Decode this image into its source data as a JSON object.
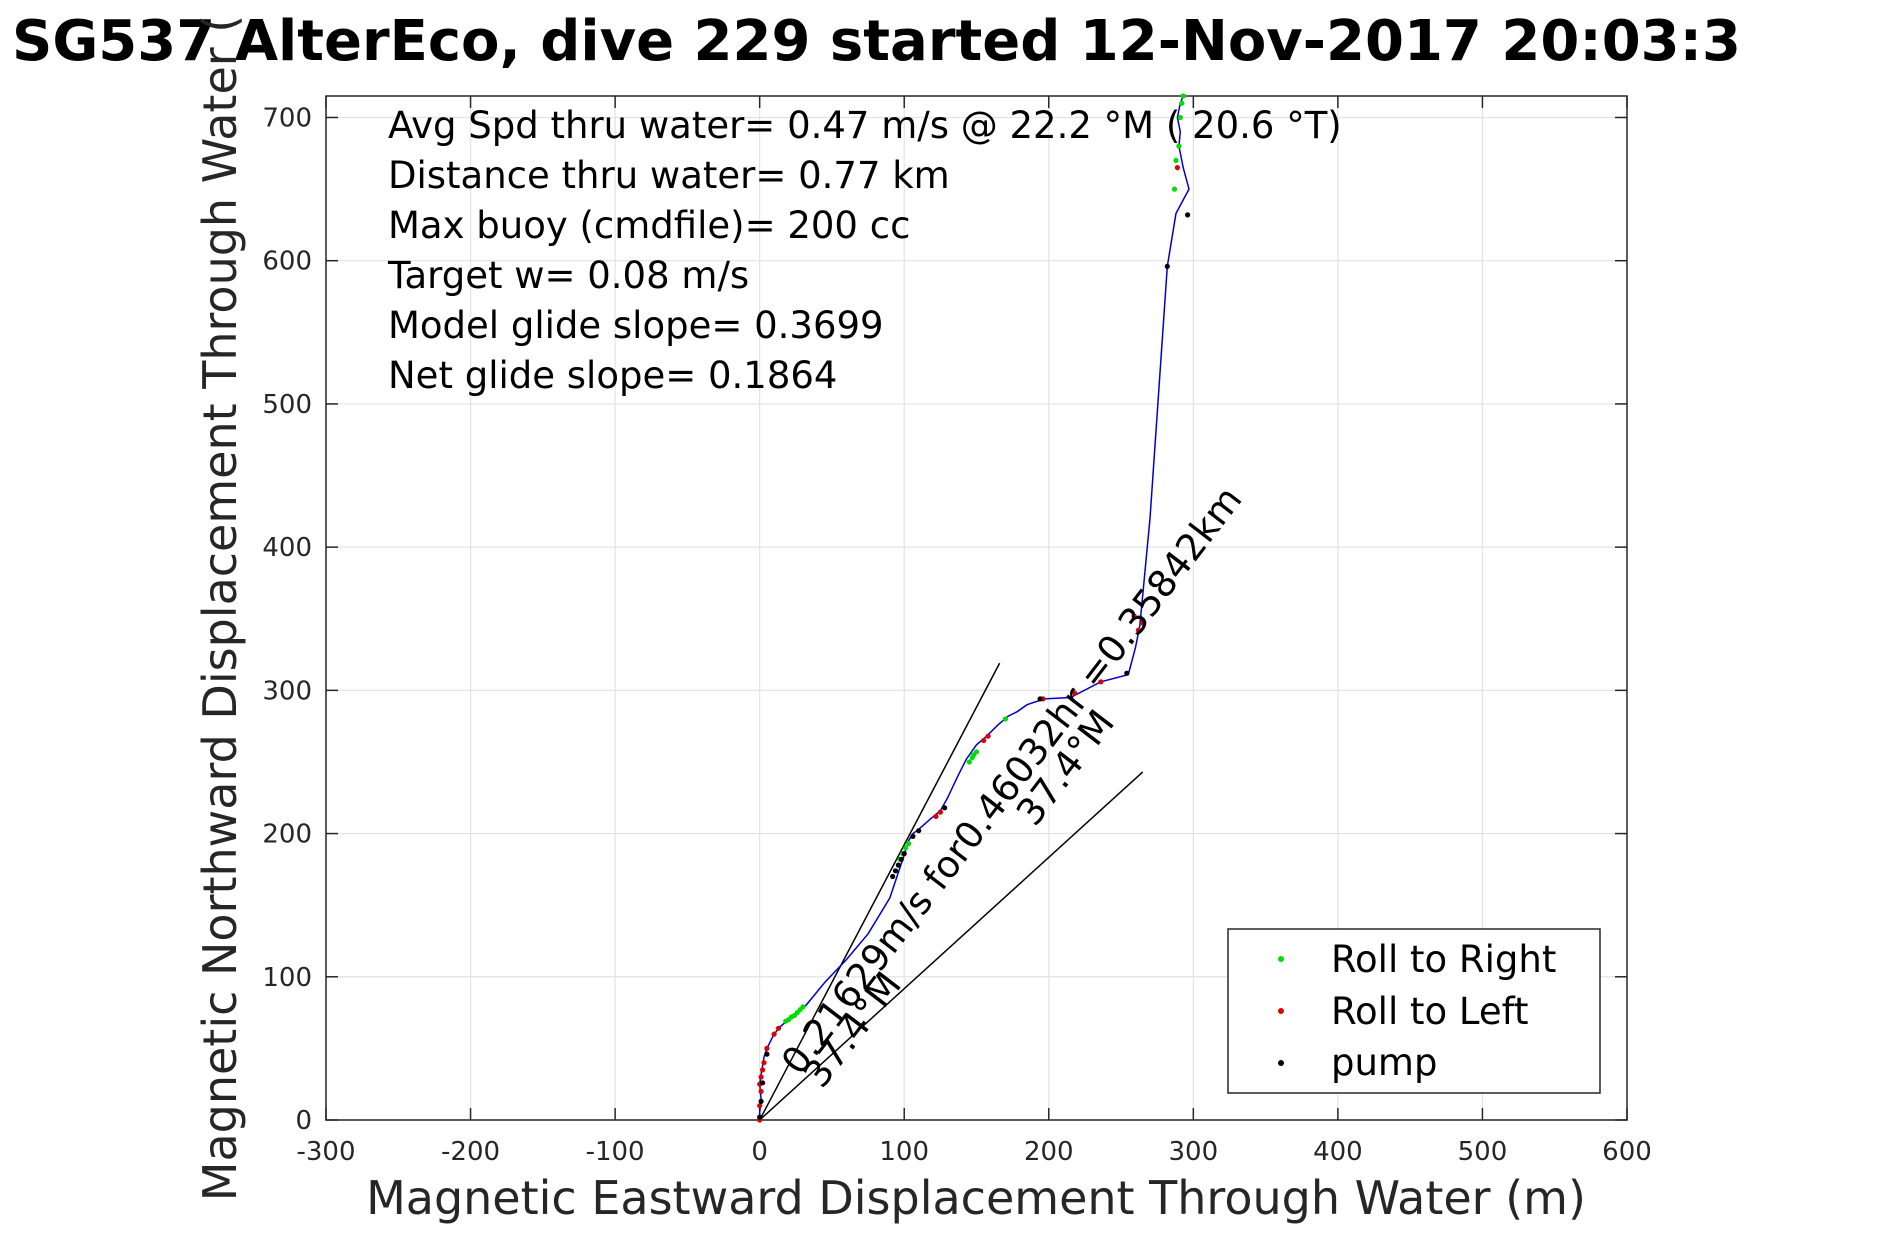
{
  "chart_data": {
    "type": "scatter",
    "title": "SG537 AlterEco, dive 229 started 12-Nov-2017 20:03:3",
    "xlabel": "Magnetic Eastward Displacement Through Water (m)",
    "ylabel": "Magnetic Northward Displacement Through Water (",
    "xlim": [
      -300,
      600
    ],
    "ylim": [
      0,
      715
    ],
    "xticks": [
      -300,
      -200,
      -100,
      0,
      100,
      200,
      300,
      400,
      500,
      600
    ],
    "yticks": [
      0,
      100,
      200,
      300,
      400,
      500,
      600,
      700
    ],
    "xtick_labels": [
      "-300",
      "-200",
      "-100",
      "0",
      "100",
      "200",
      "300",
      "400",
      "500",
      "600"
    ],
    "ytick_labels": [
      "0",
      "100",
      "200",
      "300",
      "400",
      "500",
      "600",
      "700"
    ],
    "grid": true,
    "legend_position": "bottom-right",
    "info_lines": [
      "Avg Spd thru water=  0.47 m/s @  22.2 °M ( 20.6 °T)",
      "Distance thru water=  0.77 km",
      "Max buoy (cmdfile)= 200 cc",
      "Target w= 0.08 m/s",
      "Model glide slope= 0.3699",
      "Net glide slope= 0.1864"
    ],
    "annotations": [
      "0.21629m/s for0.46032hr =0.35842km",
      "37.4°M",
      "37.4°M"
    ],
    "track": {
      "color": "#0000cc",
      "x": [
        0,
        0,
        1,
        0,
        1,
        2,
        3,
        5,
        10,
        14,
        20,
        25,
        28,
        32,
        45,
        60,
        75,
        90,
        95,
        100,
        103,
        106,
        110,
        118,
        125,
        130,
        137,
        143,
        150,
        157,
        165,
        172,
        178,
        185,
        197,
        215,
        236,
        255,
        260,
        263,
        270,
        282,
        288,
        297,
        293,
        290,
        291,
        289,
        291,
        293
      ],
      "y": [
        0,
        5,
        15,
        25,
        32,
        38,
        44,
        50,
        60,
        65,
        70,
        74,
        77,
        80,
        96,
        112,
        130,
        155,
        170,
        185,
        195,
        200,
        203,
        210,
        216,
        225,
        240,
        252,
        262,
        268,
        276,
        282,
        285,
        290,
        294,
        295,
        306,
        311,
        330,
        345,
        420,
        596,
        633,
        650,
        665,
        680,
        690,
        700,
        710,
        715
      ]
    },
    "series": [
      {
        "name": "Roll to Right",
        "color": "#00dd00",
        "x": [
          18,
          20,
          22,
          24,
          26,
          28,
          30,
          97,
          99,
          101,
          103,
          145,
          147,
          148,
          150,
          170,
          287,
          288,
          290,
          291,
          292,
          293
        ],
        "y": [
          69,
          70,
          72,
          73,
          75,
          77,
          79,
          182,
          186,
          190,
          193,
          250,
          253,
          255,
          257,
          280,
          650,
          670,
          680,
          700,
          710,
          715
        ]
      },
      {
        "name": "Roll to Left",
        "color": "#dd0000",
        "x": [
          0,
          0,
          1,
          0,
          1,
          2,
          3,
          5,
          10,
          13,
          122,
          125,
          155,
          158,
          196,
          218,
          236,
          259,
          262,
          265,
          289
        ],
        "y": [
          0,
          10,
          20,
          25,
          30,
          35,
          40,
          50,
          60,
          64,
          212,
          215,
          265,
          268,
          294,
          298,
          306,
          352,
          342,
          347,
          665
        ]
      },
      {
        "name": "pump",
        "color": "#000000",
        "x": [
          0,
          1,
          2,
          5,
          92,
          94,
          96,
          98,
          100,
          106,
          110,
          128,
          194,
          254,
          282,
          296
        ],
        "y": [
          2,
          13,
          26,
          46,
          170,
          174,
          178,
          182,
          186,
          198,
          202,
          218,
          294,
          312,
          596,
          632
        ]
      }
    ],
    "reference_lines": {
      "color": "#000000",
      "segments": [
        {
          "x": [
            0,
            166
          ],
          "y": [
            0,
            319
          ]
        },
        {
          "x": [
            0,
            265
          ],
          "y": [
            0,
            243
          ]
        }
      ]
    }
  }
}
